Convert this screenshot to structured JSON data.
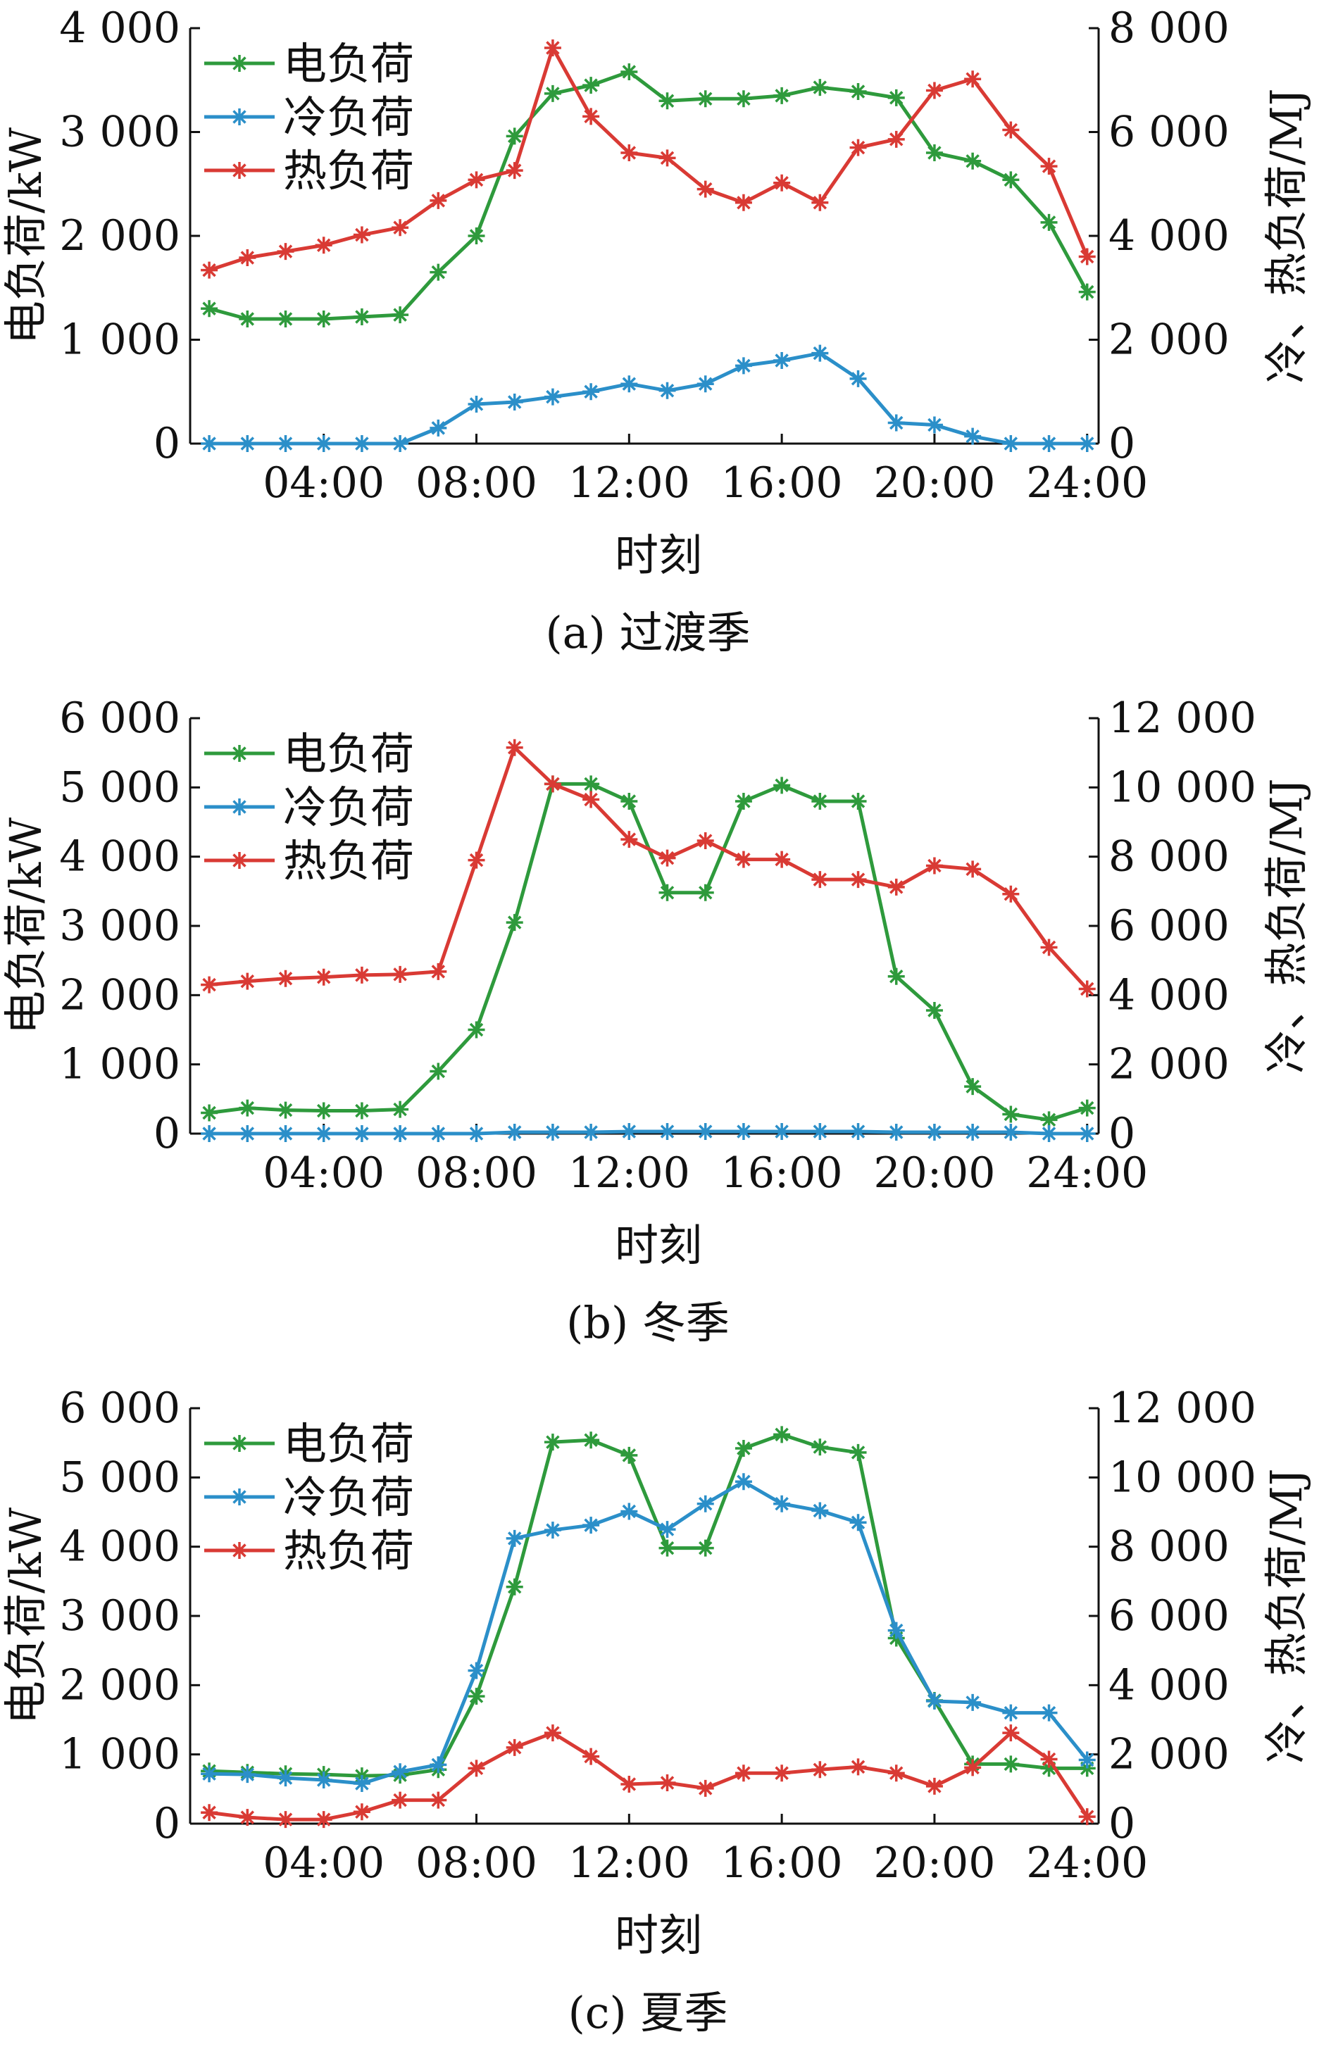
{
  "chart_data": [
    {
      "type": "line",
      "caption": "(a) 过渡季",
      "xlabel": "时刻",
      "ylabel": "电负荷/kW",
      "ylabel_right": "冷、热负荷/MJ",
      "x": [
        1,
        2,
        3,
        4,
        5,
        6,
        7,
        8,
        9,
        10,
        11,
        12,
        13,
        14,
        15,
        16,
        17,
        18,
        19,
        20,
        21,
        22,
        23,
        24
      ],
      "x_ticks": [
        "04:00",
        "08:00",
        "12:00",
        "16:00",
        "20:00",
        "24:00"
      ],
      "ylim": [
        0,
        4000
      ],
      "ylim_right": [
        0,
        8000
      ],
      "y_ticks": [
        "0",
        "1 000",
        "2 000",
        "3 000",
        "4 000"
      ],
      "y_ticks_right": [
        "0",
        "2 000",
        "4 000",
        "6 000",
        "8 000"
      ],
      "legend": [
        "电负荷",
        "冷负荷",
        "热负荷"
      ],
      "series": [
        {
          "name": "电负荷",
          "axis": "left",
          "color": "#2e9a3c",
          "values": [
            1300,
            1200,
            1200,
            1200,
            1220,
            1240,
            1650,
            2000,
            2960,
            3370,
            3450,
            3580,
            3300,
            3320,
            3320,
            3350,
            3430,
            3390,
            3330,
            2800,
            2720,
            2540,
            2130,
            1460
          ]
        },
        {
          "name": "冷负荷",
          "axis": "right",
          "color": "#2b8fc9",
          "values": [
            0,
            0,
            0,
            0,
            0,
            0,
            300,
            760,
            800,
            900,
            1000,
            1150,
            1020,
            1150,
            1500,
            1600,
            1740,
            1250,
            400,
            360,
            140,
            0,
            0,
            0
          ]
        },
        {
          "name": "热负荷",
          "axis": "right",
          "color": "#d93a34",
          "values": [
            3340,
            3580,
            3700,
            3820,
            4020,
            4160,
            4680,
            5080,
            5260,
            7620,
            6300,
            5600,
            5500,
            4900,
            4640,
            5020,
            4640,
            5700,
            5860,
            6800,
            7020,
            6040,
            5340,
            3600
          ]
        }
      ]
    },
    {
      "type": "line",
      "caption": "(b) 冬季",
      "xlabel": "时刻",
      "ylabel": "电负荷/kW",
      "ylabel_right": "冷、热负荷/MJ",
      "x": [
        1,
        2,
        3,
        4,
        5,
        6,
        7,
        8,
        9,
        10,
        11,
        12,
        13,
        14,
        15,
        16,
        17,
        18,
        19,
        20,
        21,
        22,
        23,
        24
      ],
      "x_ticks": [
        "04:00",
        "08:00",
        "12:00",
        "16:00",
        "20:00",
        "24:00"
      ],
      "ylim": [
        0,
        6000
      ],
      "ylim_right": [
        0,
        12000
      ],
      "y_ticks": [
        "0",
        "1 000",
        "2 000",
        "3 000",
        "4 000",
        "5 000",
        "6 000"
      ],
      "y_ticks_right": [
        "0",
        "2 000",
        "4 000",
        "6 000",
        "8 000",
        "10 000",
        "12 000"
      ],
      "legend": [
        "电负荷",
        "冷负荷",
        "热负荷"
      ],
      "series": [
        {
          "name": "电负荷",
          "axis": "left",
          "color": "#2e9a3c",
          "values": [
            300,
            370,
            340,
            330,
            330,
            350,
            900,
            1500,
            3050,
            5050,
            5050,
            4800,
            3480,
            3480,
            4800,
            5030,
            4800,
            4800,
            2270,
            1780,
            680,
            280,
            200,
            370
          ]
        },
        {
          "name": "冷负荷",
          "axis": "right",
          "color": "#2b8fc9",
          "values": [
            0,
            0,
            0,
            0,
            0,
            0,
            0,
            0,
            40,
            40,
            40,
            60,
            60,
            60,
            60,
            60,
            60,
            60,
            40,
            40,
            40,
            40,
            0,
            0
          ]
        },
        {
          "name": "热负荷",
          "axis": "right",
          "color": "#d93a34",
          "values": [
            4300,
            4400,
            4480,
            4520,
            4580,
            4600,
            4680,
            7900,
            11150,
            10100,
            9650,
            8500,
            7960,
            8460,
            7920,
            7920,
            7340,
            7340,
            7120,
            7740,
            7640,
            6920,
            5380,
            4180
          ]
        }
      ]
    },
    {
      "type": "line",
      "caption": "(c) 夏季",
      "xlabel": "时刻",
      "ylabel": "电负荷/kW",
      "ylabel_right": "冷、热负荷/MJ",
      "x": [
        1,
        2,
        3,
        4,
        5,
        6,
        7,
        8,
        9,
        10,
        11,
        12,
        13,
        14,
        15,
        16,
        17,
        18,
        19,
        20,
        21,
        22,
        23,
        24
      ],
      "x_ticks": [
        "04:00",
        "08:00",
        "12:00",
        "16:00",
        "20:00",
        "24:00"
      ],
      "ylim": [
        0,
        6000
      ],
      "ylim_right": [
        0,
        12000
      ],
      "y_ticks": [
        "0",
        "1 000",
        "2 000",
        "3 000",
        "4 000",
        "5 000",
        "6 000"
      ],
      "y_ticks_right": [
        "0",
        "2 000",
        "4 000",
        "6 000",
        "8 000",
        "10 000",
        "12 000"
      ],
      "legend": [
        "电负荷",
        "冷负荷",
        "热负荷"
      ],
      "series": [
        {
          "name": "电负荷",
          "axis": "left",
          "color": "#2e9a3c",
          "values": [
            760,
            740,
            720,
            710,
            690,
            700,
            780,
            1840,
            3420,
            5510,
            5540,
            5320,
            3980,
            3980,
            5420,
            5620,
            5440,
            5360,
            2680,
            1780,
            860,
            860,
            800,
            800
          ]
        },
        {
          "name": "冷负荷",
          "axis": "right",
          "color": "#2b8fc9",
          "values": [
            1440,
            1420,
            1320,
            1260,
            1160,
            1500,
            1700,
            4420,
            8240,
            8480,
            8620,
            9020,
            8500,
            9240,
            9880,
            9240,
            9040,
            8700,
            5580,
            3540,
            3500,
            3200,
            3200,
            1840
          ]
        },
        {
          "name": "热负荷",
          "axis": "right",
          "color": "#d93a34",
          "values": [
            320,
            180,
            120,
            120,
            340,
            680,
            680,
            1600,
            2200,
            2620,
            1940,
            1140,
            1180,
            1020,
            1460,
            1460,
            1560,
            1640,
            1460,
            1080,
            1620,
            2620,
            1860,
            200
          ]
        }
      ]
    }
  ]
}
